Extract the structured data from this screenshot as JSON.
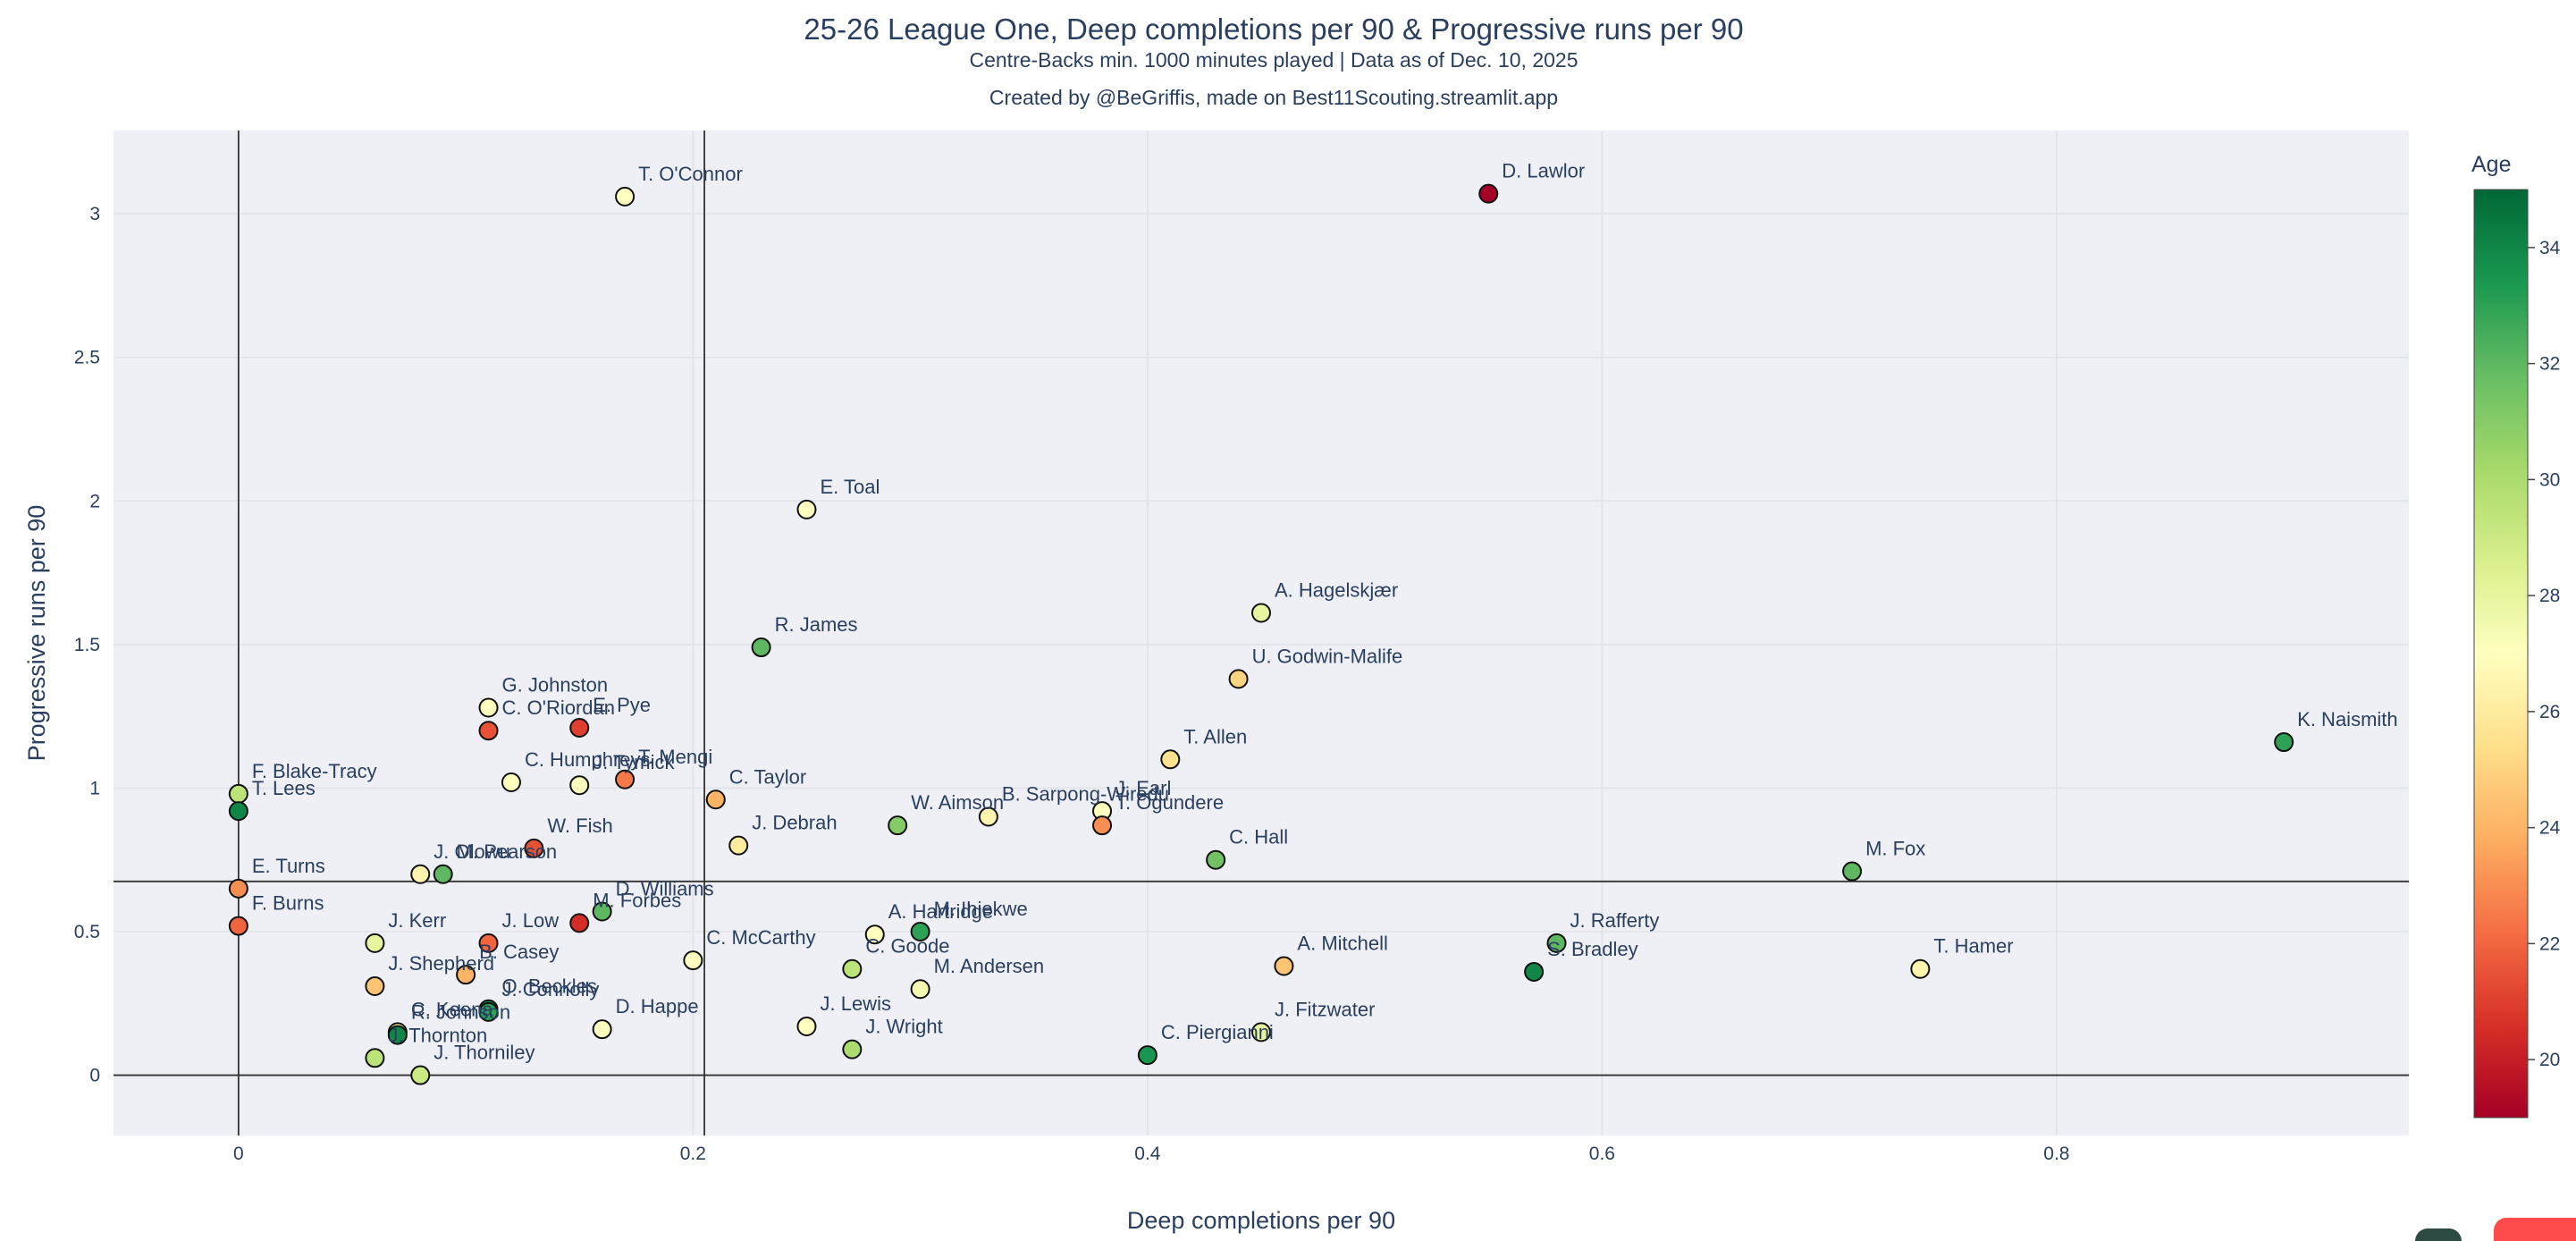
{
  "chart_data": {
    "type": "scatter",
    "title": "25-26 League One, Deep completions per 90 & Progressive runs per 90",
    "subtitle": "Centre-Backs min. 1000 minutes played | Data as of Dec. 10, 2025",
    "caption": "Created by @BeGriffis, made on Best11Scouting.streamlit.app",
    "xlabel": "Deep completions per 90",
    "ylabel": "Progressive runs per 90",
    "xlim": [
      -0.055,
      0.955
    ],
    "ylim": [
      -0.21,
      3.29
    ],
    "xticks": [
      0,
      0.2,
      0.4,
      0.6,
      0.8
    ],
    "xtick_labels": [
      "0",
      "0.2",
      "0.4",
      "0.6",
      "0.8"
    ],
    "yticks": [
      0,
      0.5,
      1,
      1.5,
      2,
      2.5,
      3
    ],
    "ytick_labels": [
      "0",
      "0.5",
      "1",
      "1.5",
      "2",
      "2.5",
      "3"
    ],
    "grid": true,
    "reference_lines": {
      "x": 0.205,
      "y": 0.675
    },
    "colorbar": {
      "title": "Age",
      "ticks": [
        20,
        22,
        24,
        26,
        28,
        30,
        32,
        34
      ],
      "tick_labels": [
        "20",
        "22",
        "24",
        "26",
        "28",
        "30",
        "32",
        "34"
      ],
      "range": [
        19,
        35
      ],
      "colorscale": "RdYlGn"
    },
    "points": [
      {
        "name": "T. O'Connor",
        "x": 0.17,
        "y": 3.06,
        "age": 27
      },
      {
        "name": "D. Lawlor",
        "x": 0.55,
        "y": 3.07,
        "age": 19
      },
      {
        "name": "E. Toal",
        "x": 0.25,
        "y": 1.97,
        "age": 27
      },
      {
        "name": "A. Hagelskjær",
        "x": 0.45,
        "y": 1.61,
        "age": 28
      },
      {
        "name": "R. James",
        "x": 0.23,
        "y": 1.49,
        "age": 32
      },
      {
        "name": "U. Godwin-Malife",
        "x": 0.44,
        "y": 1.38,
        "age": 25
      },
      {
        "name": "G. Johnston",
        "x": 0.11,
        "y": 1.28,
        "age": 27
      },
      {
        "name": "C. O'Riordan",
        "x": 0.11,
        "y": 1.2,
        "age": 21.5
      },
      {
        "name": "E. Pye",
        "x": 0.15,
        "y": 1.21,
        "age": 21
      },
      {
        "name": "K. Naismith",
        "x": 0.9,
        "y": 1.16,
        "age": 33
      },
      {
        "name": "T. Allen",
        "x": 0.41,
        "y": 1.1,
        "age": 25.5
      },
      {
        "name": "T. Mengi",
        "x": 0.17,
        "y": 1.03,
        "age": 22.5
      },
      {
        "name": "C. Humphreys",
        "x": 0.12,
        "y": 1.02,
        "age": 27
      },
      {
        "name": "J. Tymick",
        "x": 0.15,
        "y": 1.01,
        "age": 27
      },
      {
        "name": "F. Blake-Tracy",
        "x": 0.0,
        "y": 0.98,
        "age": 29.5
      },
      {
        "name": "C. Taylor",
        "x": 0.21,
        "y": 0.96,
        "age": 24
      },
      {
        "name": "T. Lees",
        "x": 0.0,
        "y": 0.92,
        "age": 34
      },
      {
        "name": "J. Earl",
        "x": 0.38,
        "y": 0.92,
        "age": 27
      },
      {
        "name": "B. Sarpong-Wiredu",
        "x": 0.33,
        "y": 0.9,
        "age": 26.5
      },
      {
        "name": "T. Ogundere",
        "x": 0.38,
        "y": 0.87,
        "age": 23
      },
      {
        "name": "W. Aimson",
        "x": 0.29,
        "y": 0.87,
        "age": 31
      },
      {
        "name": "J. Debrah",
        "x": 0.22,
        "y": 0.8,
        "age": 26
      },
      {
        "name": "W. Fish",
        "x": 0.13,
        "y": 0.79,
        "age": 21.5
      },
      {
        "name": "C. Hall",
        "x": 0.43,
        "y": 0.75,
        "age": 31.5
      },
      {
        "name": "M. Fox",
        "x": 0.71,
        "y": 0.71,
        "age": 32
      },
      {
        "name": "J. Olowu",
        "x": 0.08,
        "y": 0.7,
        "age": 26.5
      },
      {
        "name": "M. Pearson",
        "x": 0.09,
        "y": 0.7,
        "age": 32
      },
      {
        "name": "E. Turns",
        "x": 0.0,
        "y": 0.65,
        "age": 23
      },
      {
        "name": "D. Williams",
        "x": 0.16,
        "y": 0.57,
        "age": 32
      },
      {
        "name": "M. Forbes",
        "x": 0.15,
        "y": 0.53,
        "age": 20.5
      },
      {
        "name": "F. Burns",
        "x": 0.0,
        "y": 0.52,
        "age": 22
      },
      {
        "name": "M. Ihiekwe",
        "x": 0.3,
        "y": 0.5,
        "age": 33
      },
      {
        "name": "A. Hartridge",
        "x": 0.28,
        "y": 0.49,
        "age": 27
      },
      {
        "name": "J. Kerr",
        "x": 0.06,
        "y": 0.46,
        "age": 28
      },
      {
        "name": "J. Low",
        "x": 0.11,
        "y": 0.46,
        "age": 22
      },
      {
        "name": "J. Rafferty",
        "x": 0.58,
        "y": 0.46,
        "age": 32
      },
      {
        "name": "C. McCarthy",
        "x": 0.2,
        "y": 0.4,
        "age": 27
      },
      {
        "name": "A. Mitchell",
        "x": 0.46,
        "y": 0.38,
        "age": 24.5
      },
      {
        "name": "C. Goode",
        "x": 0.27,
        "y": 0.37,
        "age": 29.5
      },
      {
        "name": "T. Hamer",
        "x": 0.74,
        "y": 0.37,
        "age": 26.5
      },
      {
        "name": "S. Bradley",
        "x": 0.57,
        "y": 0.36,
        "age": 34
      },
      {
        "name": "B. Casey",
        "x": 0.1,
        "y": 0.35,
        "age": 24
      },
      {
        "name": "J. Shepherd",
        "x": 0.06,
        "y": 0.31,
        "age": 24.5
      },
      {
        "name": "M. Andersen",
        "x": 0.3,
        "y": 0.3,
        "age": 27.5
      },
      {
        "name": "O. Beckles",
        "x": 0.11,
        "y": 0.23,
        "age": 34
      },
      {
        "name": "J. Connolly",
        "x": 0.11,
        "y": 0.22,
        "age": 33
      },
      {
        "name": "J. Lewis",
        "x": 0.25,
        "y": 0.17,
        "age": 27
      },
      {
        "name": "D. Happe",
        "x": 0.16,
        "y": 0.16,
        "age": 27
      },
      {
        "name": "J. Fitzwater",
        "x": 0.45,
        "y": 0.15,
        "age": 28
      },
      {
        "name": "C. Keena",
        "x": 0.07,
        "y": 0.15,
        "age": 28.5
      },
      {
        "name": "R. Johnson",
        "x": 0.07,
        "y": 0.14,
        "age": 34
      },
      {
        "name": "J. Wright",
        "x": 0.27,
        "y": 0.09,
        "age": 30
      },
      {
        "name": "C. Piergianni",
        "x": 0.4,
        "y": 0.07,
        "age": 33.5
      },
      {
        "name": "J. Thorniley",
        "x": 0.08,
        "y": 0.0,
        "age": 29
      },
      {
        "name": "J. Thornton",
        "x": 0.06,
        "y": 0.06,
        "age": 29.5
      }
    ]
  }
}
